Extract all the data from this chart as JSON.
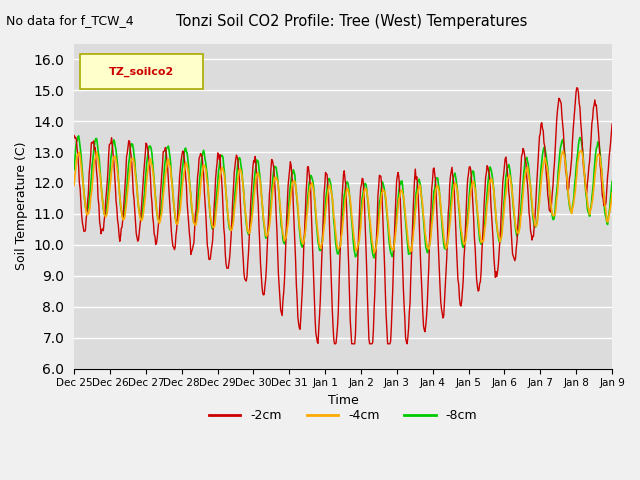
{
  "title": "Tonzi Soil CO2 Profile: Tree (West) Temperatures",
  "subtitle": "No data for f_TCW_4",
  "xlabel": "Time",
  "ylabel": "Soil Temperature (C)",
  "legend_label": "TZ_soilco2",
  "ylim": [
    6.0,
    16.5
  ],
  "yticks": [
    6.0,
    7.0,
    8.0,
    9.0,
    10.0,
    11.0,
    12.0,
    13.0,
    14.0,
    15.0,
    16.0
  ],
  "bg_color": "#dcdcdc",
  "series": {
    "2cm": {
      "color": "#cc0000",
      "label": "-2cm"
    },
    "4cm": {
      "color": "#ffaa00",
      "label": "-4cm"
    },
    "8cm": {
      "color": "#00cc00",
      "label": "-8cm"
    }
  },
  "xtick_labels": [
    "Dec 25",
    "Dec 26",
    "Dec 27",
    "Dec 28",
    "Dec 29",
    "Dec 30",
    "Dec 31",
    "Jan 1",
    "Jan 2",
    "Jan 3",
    "Jan 4",
    "Jan 5",
    "Jan 6",
    "Jan 7",
    "Jan 8",
    "Jan 9"
  ]
}
